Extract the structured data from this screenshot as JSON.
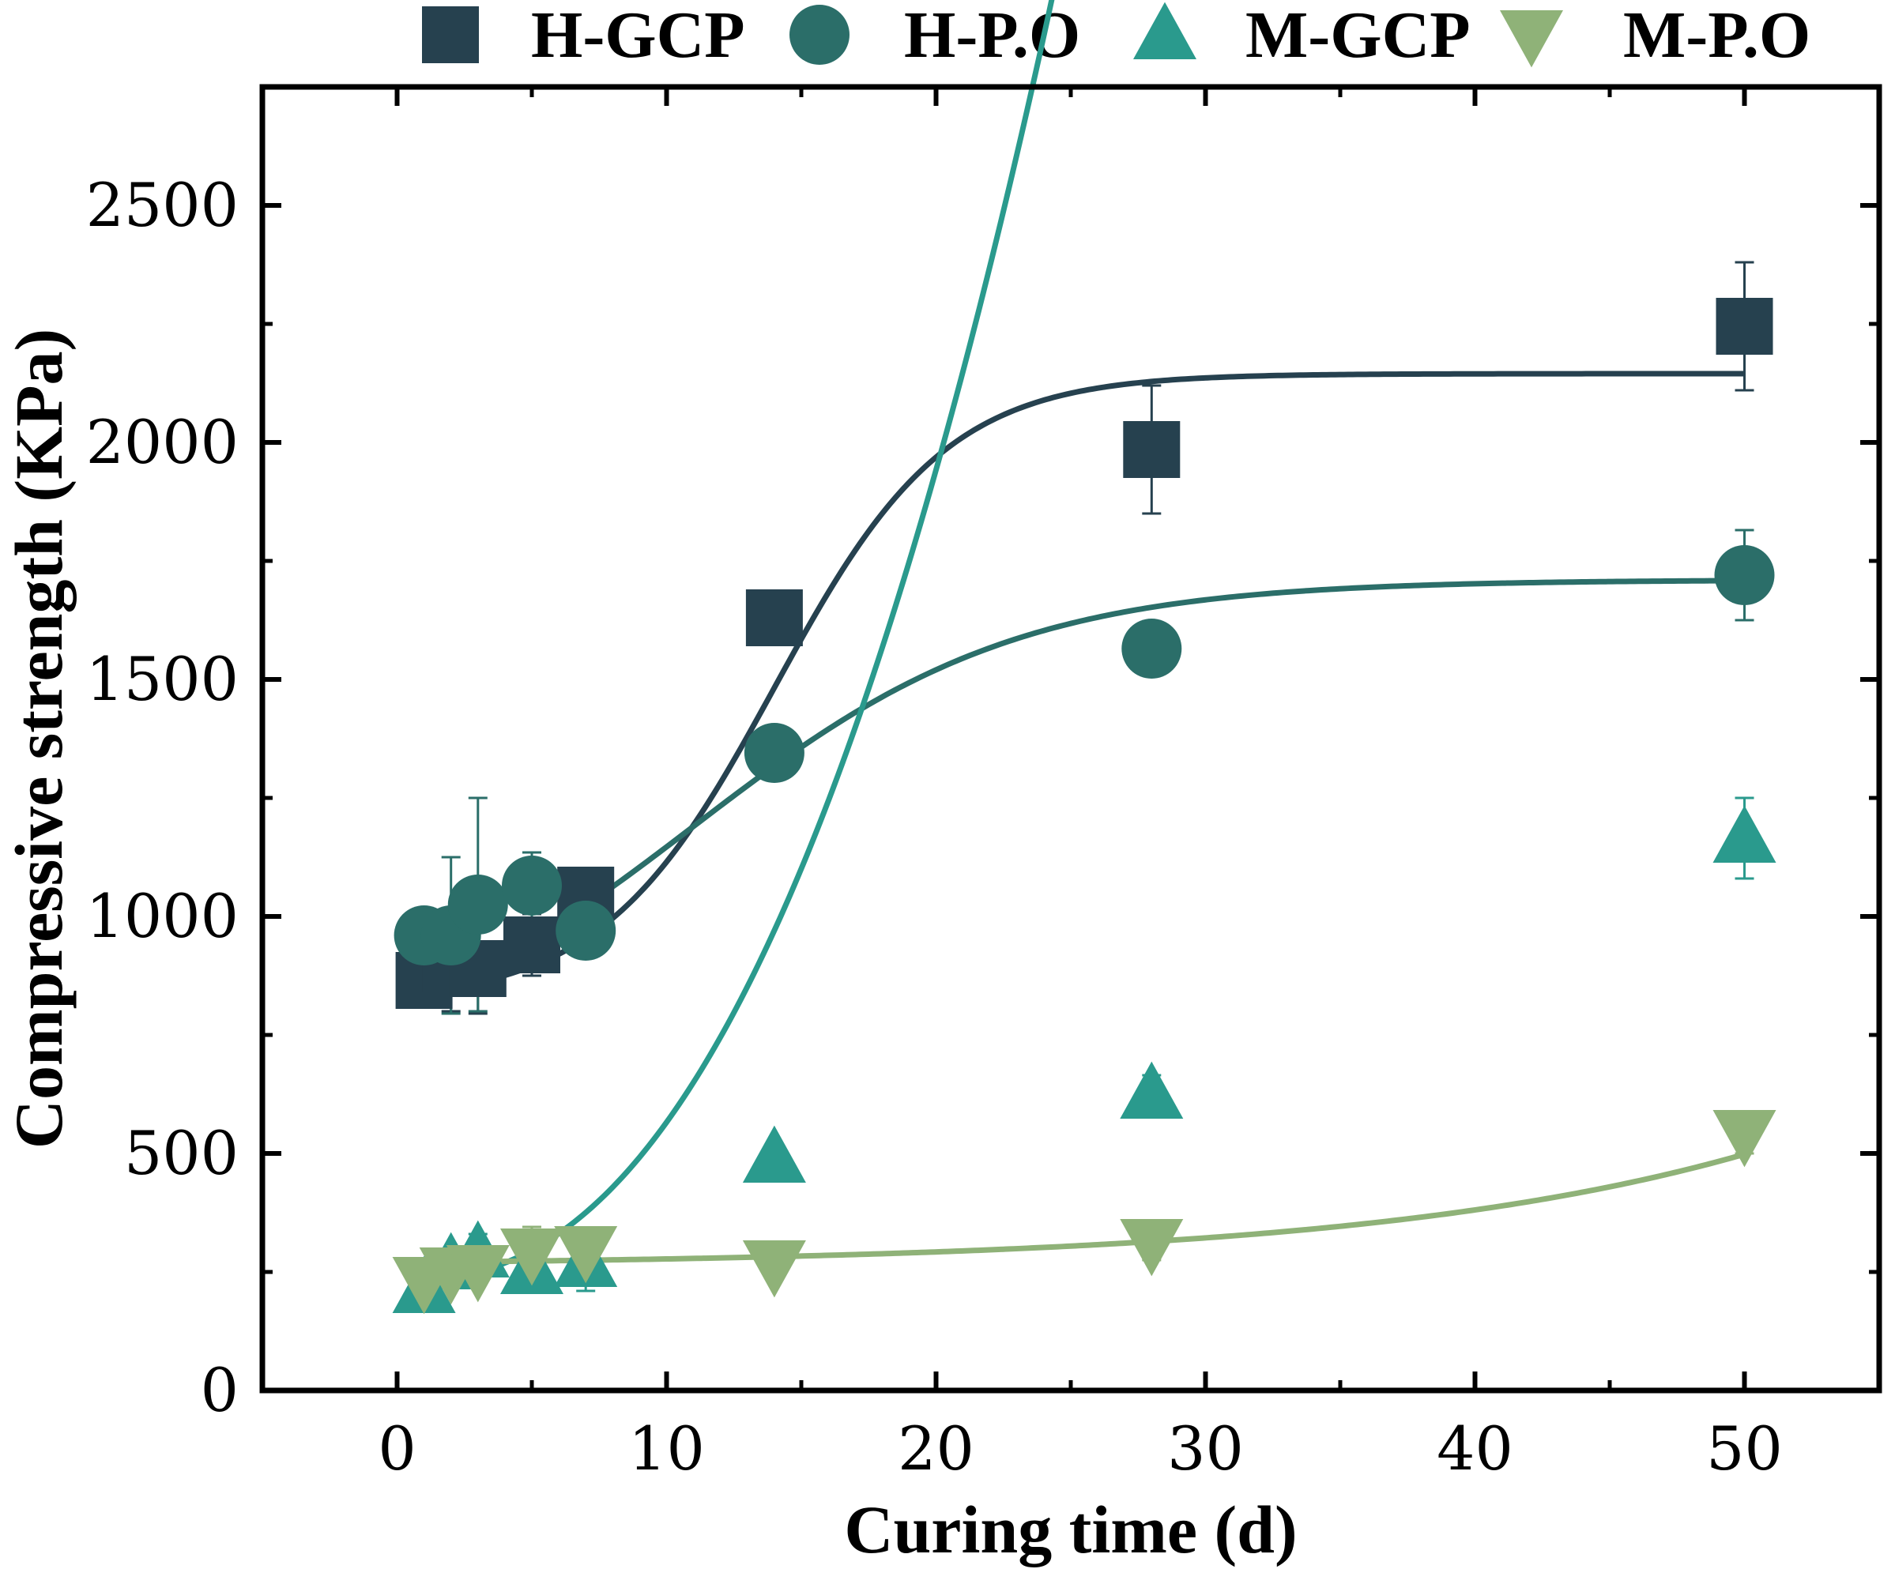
{
  "chart_data": {
    "type": "scatter",
    "title": "",
    "xlabel": "Curing time (d)",
    "ylabel": "Compressive strength (KPa)",
    "xlim": [
      -5,
      55
    ],
    "ylim": [
      0,
      2750
    ],
    "xticks": [
      0,
      10,
      20,
      30,
      40,
      50
    ],
    "yticks": [
      0,
      500,
      1000,
      1500,
      2000,
      2500
    ],
    "x_minor_step": 5,
    "y_minor_step": 250,
    "grid": false,
    "legend_position": "top",
    "series": [
      {
        "name": "H-GCP",
        "marker": "square",
        "color": "#26414f",
        "x": [
          1,
          2,
          3,
          5,
          7,
          14,
          28,
          50
        ],
        "y": [
          865,
          900,
          890,
          940,
          1045,
          1630,
          1985,
          2245
        ],
        "err": [
          45,
          100,
          95,
          65,
          30,
          0,
          135,
          135
        ],
        "fit": {
          "model": "sigmoid",
          "A1": 820,
          "A2": 2145,
          "x0": 14,
          "dx": 3.2
        }
      },
      {
        "name": "H-P.O",
        "marker": "circle",
        "color": "#2b6e69",
        "x": [
          1,
          2,
          3,
          5,
          7,
          14,
          28,
          50
        ],
        "y": [
          960,
          960,
          1025,
          1065,
          970,
          1345,
          1565,
          1720
        ],
        "err": [
          40,
          165,
          225,
          70,
          0,
          0,
          0,
          95
        ],
        "fit": {
          "model": "sigmoid",
          "A1": 670,
          "A2": 1710,
          "x0": 11,
          "dx": 6
        }
      },
      {
        "name": "M-GCP",
        "marker": "triangle-up",
        "color": "#2a9a8d",
        "x": [
          1,
          2,
          3,
          5,
          7,
          14,
          28,
          50
        ],
        "y": [
          215,
          265,
          290,
          255,
          270,
          490,
          625,
          1165
        ],
        "err": [
          45,
          20,
          40,
          30,
          60,
          0,
          40,
          85
        ],
        "fit": {
          "model": "power",
          "a": 230,
          "b": 2.35,
          "c": 1.5
        }
      },
      {
        "name": "M-P.O",
        "marker": "triangle-down",
        "color": "#8fb278",
        "x": [
          1,
          2,
          3,
          5,
          7,
          14,
          28,
          50
        ],
        "y": [
          230,
          250,
          255,
          290,
          295,
          265,
          310,
          540
        ],
        "err": [
          20,
          20,
          25,
          55,
          35,
          0,
          35,
          40
        ],
        "fit": {
          "model": "exp",
          "y0": 270,
          "A": 7.5,
          "t": 14.5,
          "k": 0.0,
          "x_start": 1,
          "y_start": 230
        }
      }
    ]
  }
}
